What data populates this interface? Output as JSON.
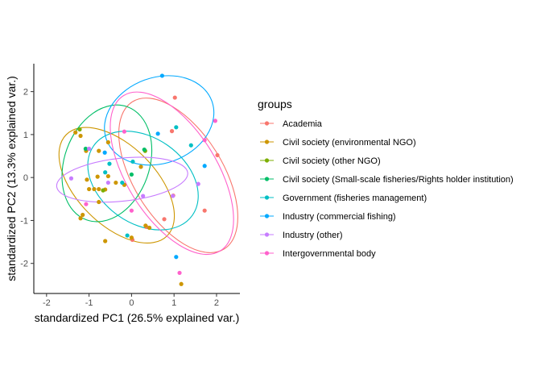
{
  "chart_data": {
    "type": "scatter",
    "title": "",
    "xlabel": "standardized PC1 (26.5% explained var.)",
    "ylabel": "standardized PC2 (13.3% explained var.)",
    "xlim": [
      -2.3,
      2.55
    ],
    "ylim": [
      -2.7,
      2.65
    ],
    "xticks": [
      -2,
      -1,
      0,
      1,
      2
    ],
    "yticks": [
      -2,
      -1,
      0,
      1,
      2
    ],
    "grid": false,
    "legend": {
      "title": "groups",
      "position": "right"
    },
    "series": [
      {
        "name": "Academia",
        "color": "#F8766D",
        "points": [
          [
            1.02,
            1.86
          ],
          [
            2.02,
            0.52
          ],
          [
            1.72,
            -0.77
          ],
          [
            0.77,
            -0.97
          ],
          [
            0.98,
            -0.42
          ],
          [
            0.02,
            -1.45
          ],
          [
            0.35,
            -1.15
          ],
          [
            0.95,
            1.08
          ]
        ],
        "ellipse": {
          "cx": 1.1,
          "cy": 0.05,
          "rx": 1.05,
          "ry": 2.02,
          "angle": -32
        }
      },
      {
        "name": "Civil society (environmental NGO)",
        "color": "#CD9600",
        "points": [
          [
            -1.32,
            1.05
          ],
          [
            -1.2,
            0.97
          ],
          [
            -1.07,
            0.62
          ],
          [
            -0.77,
            0.62
          ],
          [
            -0.55,
            0.82
          ],
          [
            -1.0,
            -0.27
          ],
          [
            -0.88,
            -0.27
          ],
          [
            -0.77,
            -0.27
          ],
          [
            -0.62,
            -0.28
          ],
          [
            -0.8,
            0.02
          ],
          [
            -0.55,
            0.03
          ],
          [
            -0.77,
            -0.57
          ],
          [
            -0.17,
            -0.17
          ],
          [
            0.22,
            0.25
          ],
          [
            0.33,
            -1.12
          ],
          [
            0.42,
            -1.17
          ],
          [
            -1.2,
            -0.95
          ],
          [
            -1.15,
            -0.87
          ],
          [
            -1.05,
            -0.05
          ],
          [
            -0.62,
            -1.48
          ],
          [
            0.0,
            -1.4
          ],
          [
            1.17,
            -2.48
          ],
          [
            -0.37,
            -0.12
          ]
        ],
        "ellipse": {
          "cx": -0.35,
          "cy": -0.18,
          "rx": 1.68,
          "ry": 0.92,
          "angle": 45
        }
      },
      {
        "name": "Civil society (other NGO)",
        "color": "#7CAE00",
        "points": [
          [
            -1.22,
            1.12
          ],
          [
            -0.67,
            -0.3
          ],
          [
            0.32,
            0.62
          ]
        ],
        "ellipse": null
      },
      {
        "name": "Civil society (Small-scale fisheries/Rights holder institution)",
        "color": "#00BE67",
        "points": [
          [
            -1.08,
            0.67
          ],
          [
            0.0,
            0.07
          ],
          [
            0.3,
            0.65
          ]
        ],
        "ellipse": {
          "cx": -0.58,
          "cy": 0.33,
          "rx": 1.0,
          "ry": 1.4,
          "angle": 20
        }
      },
      {
        "name": "Government (fisheries management)",
        "color": "#00BFC4",
        "points": [
          [
            1.05,
            1.17
          ],
          [
            1.4,
            0.75
          ],
          [
            -0.52,
            0.32
          ],
          [
            -0.62,
            0.12
          ],
          [
            0.03,
            0.37
          ],
          [
            -0.22,
            -0.12
          ],
          [
            -0.1,
            -1.35
          ]
        ],
        "ellipse": {
          "cx": 0.27,
          "cy": -0.07,
          "rx": 1.42,
          "ry": 1.0,
          "angle": 35
        }
      },
      {
        "name": "Industry (commercial fishing)",
        "color": "#00A9FF",
        "points": [
          [
            0.72,
            2.37
          ],
          [
            1.72,
            0.27
          ],
          [
            0.62,
            1.02
          ],
          [
            -0.63,
            0.58
          ],
          [
            1.05,
            -1.85
          ]
        ],
        "ellipse": {
          "cx": 0.65,
          "cy": 1.33,
          "rx": 1.32,
          "ry": 1.0,
          "angle": -20
        }
      },
      {
        "name": "Industry (other)",
        "color": "#C77CFF",
        "points": [
          [
            -1.42,
            -0.02
          ],
          [
            -1.0,
            0.67
          ],
          [
            -0.55,
            -0.12
          ],
          [
            0.27,
            -0.43
          ],
          [
            1.57,
            -0.15
          ],
          [
            0.97,
            -0.43
          ]
        ],
        "ellipse": {
          "cx": -0.22,
          "cy": -0.05,
          "rx": 1.55,
          "ry": 0.5,
          "angle": -6
        }
      },
      {
        "name": "Intergovernmental body",
        "color": "#FF61CC",
        "points": [
          [
            1.97,
            1.32
          ],
          [
            -0.17,
            1.07
          ],
          [
            -1.07,
            -0.62
          ],
          [
            0.0,
            -0.77
          ],
          [
            1.72,
            0.87
          ],
          [
            1.13,
            -2.22
          ]
        ],
        "ellipse": {
          "cx": 0.95,
          "cy": 0.1,
          "rx": 2.15,
          "ry": 1.05,
          "angle": 58
        }
      }
    ]
  }
}
